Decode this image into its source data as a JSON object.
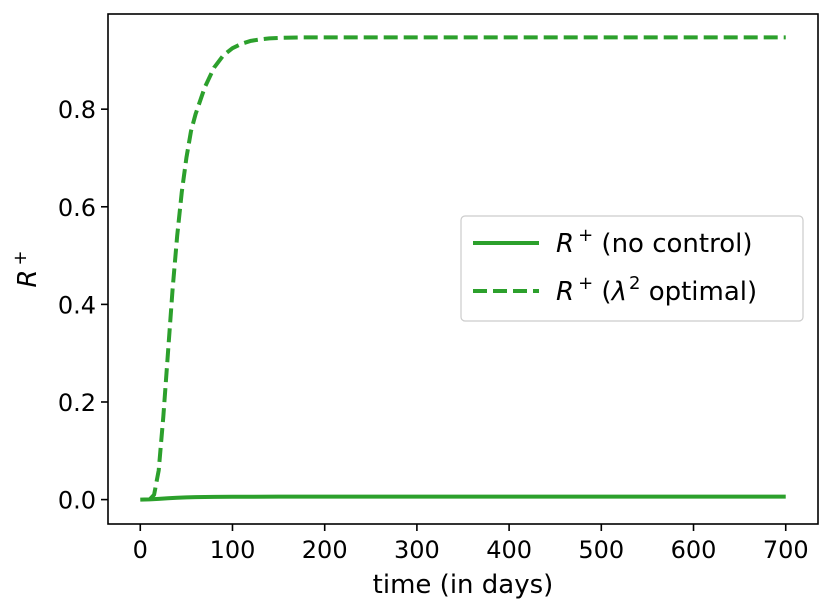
{
  "chart_data": {
    "type": "line",
    "xlabel": "time (in days)",
    "ylabel": {
      "base": "R",
      "sup": "+"
    },
    "xlim": [
      -35,
      735
    ],
    "ylim": [
      -0.05,
      0.995
    ],
    "xticks": [
      0,
      100,
      200,
      300,
      400,
      500,
      600,
      700
    ],
    "yticks": [
      0.0,
      0.2,
      0.4,
      0.6,
      0.8
    ],
    "ytick_labels": [
      "0.0",
      "0.2",
      "0.4",
      "0.6",
      "0.8"
    ],
    "grid": false,
    "legend_placement": "center-right",
    "color": "#2ca02c",
    "series": [
      {
        "name": "R + (no control)",
        "legend": {
          "base": "R",
          "sup": "+",
          "rest": " (no control)"
        },
        "style": "solid",
        "x": [
          0,
          10,
          20,
          30,
          40,
          50,
          60,
          80,
          100,
          150,
          200,
          300,
          400,
          500,
          600,
          700
        ],
        "y": [
          0.0,
          0.0005,
          0.0015,
          0.0028,
          0.0038,
          0.0045,
          0.005,
          0.0055,
          0.0058,
          0.006,
          0.006,
          0.006,
          0.006,
          0.006,
          0.006,
          0.006
        ]
      },
      {
        "name": "R + (λ 2 optimal)",
        "legend": {
          "base": "R",
          "sup": "+",
          "rest_pre": " (",
          "lambda": "λ",
          "lambda_sup": "2",
          "rest_post": " optimal)"
        },
        "style": "dashed",
        "x": [
          10,
          15,
          20,
          25,
          30,
          35,
          40,
          45,
          50,
          55,
          60,
          70,
          80,
          90,
          100,
          110,
          120,
          130,
          140,
          150,
          175,
          200,
          250,
          300,
          400,
          500,
          600,
          700
        ],
        "y": [
          0.0,
          0.01,
          0.06,
          0.17,
          0.3,
          0.43,
          0.54,
          0.63,
          0.7,
          0.755,
          0.79,
          0.845,
          0.885,
          0.91,
          0.925,
          0.934,
          0.94,
          0.943,
          0.945,
          0.946,
          0.947,
          0.947,
          0.947,
          0.947,
          0.947,
          0.947,
          0.947,
          0.947
        ]
      }
    ]
  }
}
